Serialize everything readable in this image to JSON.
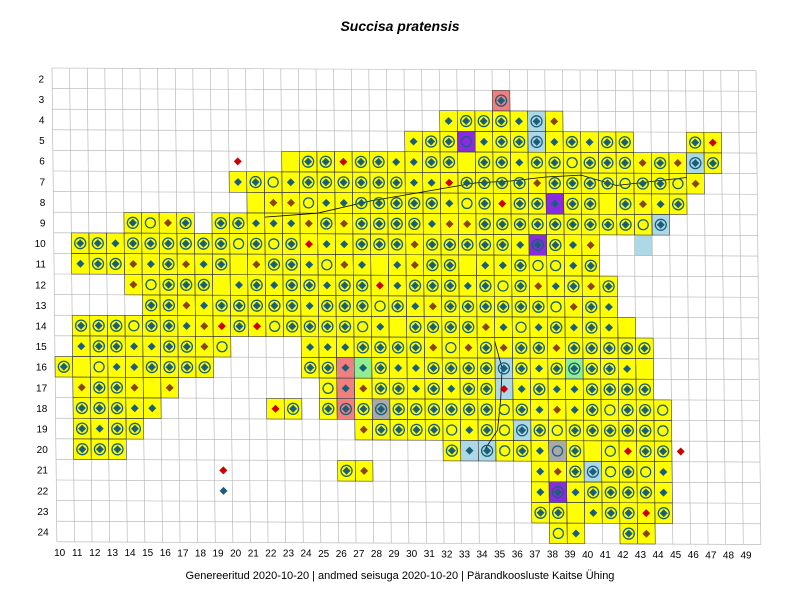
{
  "title": "Succisa pratensis",
  "footer": "Genereeritud 2020-10-20  |  andmed seisuga 2020-10-20  |  Pärandkoosluste Kaitse Ühing",
  "grid": {
    "columns": [
      10,
      11,
      12,
      13,
      14,
      15,
      16,
      17,
      18,
      19,
      20,
      21,
      22,
      23,
      24,
      25,
      26,
      27,
      28,
      29,
      30,
      31,
      32,
      33,
      34,
      35,
      36,
      37,
      38,
      39,
      40,
      41,
      42,
      43,
      44,
      45,
      46,
      47,
      48,
      49
    ],
    "rows": [
      2,
      3,
      4,
      5,
      6,
      7,
      8,
      9,
      10,
      11,
      12,
      13,
      14,
      15,
      16,
      17,
      18,
      19,
      20,
      21,
      22,
      23,
      24
    ]
  },
  "colors": {
    "present": "#ffff00",
    "historic": "#add8e6",
    "pink": "#f08080",
    "purple": "#8a2be2",
    "green": "#90ee90",
    "gray": "#a9a9a9",
    "diamond_teal": "#1a5f7a",
    "diamond_brown": "#8b4513",
    "diamond_red": "#cc0000",
    "circle": "#1a5f7a"
  },
  "legend_symbols": [
    "diamond",
    "circle",
    "circle-diamond",
    "circle-cross"
  ],
  "chart_data": {
    "type": "grid-distribution-map",
    "extent_rows": [
      {
        "row": 3,
        "cells": [
          [
            35,
            35
          ]
        ]
      },
      {
        "row": 4,
        "cells": [
          [
            32,
            35
          ],
          [
            36,
            38
          ]
        ]
      },
      {
        "row": 5,
        "cells": [
          [
            30,
            42
          ],
          [
            46,
            47
          ]
        ]
      },
      {
        "row": 6,
        "cells": [
          [
            23,
            47
          ]
        ]
      },
      {
        "row": 7,
        "cells": [
          [
            20,
            46
          ]
        ]
      },
      {
        "row": 8,
        "cells": [
          [
            21,
            45
          ]
        ]
      },
      {
        "row": 9,
        "cells": [
          [
            14,
            17
          ],
          [
            19,
            44
          ]
        ]
      },
      {
        "row": 10,
        "cells": [
          [
            11,
            40
          ]
        ]
      },
      {
        "row": 11,
        "cells": [
          [
            11,
            40
          ]
        ]
      },
      {
        "row": 12,
        "cells": [
          [
            14,
            41
          ]
        ]
      },
      {
        "row": 13,
        "cells": [
          [
            15,
            41
          ]
        ]
      },
      {
        "row": 14,
        "cells": [
          [
            11,
            42
          ]
        ]
      },
      {
        "row": 15,
        "cells": [
          [
            11,
            19
          ],
          [
            24,
            43
          ]
        ]
      },
      {
        "row": 16,
        "cells": [
          [
            10,
            18
          ],
          [
            24,
            43
          ]
        ]
      },
      {
        "row": 17,
        "cells": [
          [
            11,
            16
          ],
          [
            25,
            43
          ]
        ]
      },
      {
        "row": 18,
        "cells": [
          [
            11,
            15
          ],
          [
            22,
            23
          ],
          [
            25,
            44
          ]
        ]
      },
      {
        "row": 19,
        "cells": [
          [
            11,
            14
          ],
          [
            27,
            44
          ]
        ]
      },
      {
        "row": 20,
        "cells": [
          [
            11,
            13
          ],
          [
            32,
            44
          ]
        ]
      },
      {
        "row": 21,
        "cells": [
          [
            26,
            27
          ],
          [
            37,
            44
          ]
        ]
      },
      {
        "row": 22,
        "cells": [
          [
            37,
            44
          ]
        ]
      },
      {
        "row": 23,
        "cells": [
          [
            37,
            44
          ]
        ]
      },
      {
        "row": 24,
        "cells": [
          [
            38,
            39
          ],
          [
            42,
            43
          ]
        ]
      }
    ],
    "special_cells": [
      {
        "col": 35,
        "row": 3,
        "status": "pink"
      },
      {
        "col": 33,
        "row": 5,
        "status": "purple"
      },
      {
        "col": 38,
        "row": 8,
        "status": "purple"
      },
      {
        "col": 37,
        "row": 10,
        "status": "purple"
      },
      {
        "col": 38,
        "row": 22,
        "status": "purple"
      },
      {
        "col": 26,
        "row": 16,
        "status": "pink"
      },
      {
        "col": 26,
        "row": 17,
        "status": "pink"
      },
      {
        "col": 26,
        "row": 18,
        "status": "pink"
      },
      {
        "col": 27,
        "row": 16,
        "status": "green"
      },
      {
        "col": 39,
        "row": 16,
        "status": "green"
      },
      {
        "col": 28,
        "row": 18,
        "status": "gray"
      },
      {
        "col": 38,
        "row": 20,
        "status": "gray"
      },
      {
        "col": 37,
        "row": 4,
        "status": "historic"
      },
      {
        "col": 37,
        "row": 5,
        "status": "historic"
      },
      {
        "col": 46,
        "row": 6,
        "status": "historic"
      },
      {
        "col": 43,
        "row": 10,
        "status": "historic"
      },
      {
        "col": 44,
        "row": 9,
        "status": "historic"
      },
      {
        "col": 35,
        "row": 16,
        "status": "historic"
      },
      {
        "col": 35,
        "row": 17,
        "status": "historic"
      },
      {
        "col": 34,
        "row": 20,
        "status": "historic"
      },
      {
        "col": 33,
        "row": 20,
        "status": "historic"
      },
      {
        "col": 36,
        "row": 19,
        "status": "historic"
      },
      {
        "col": 40,
        "row": 21,
        "status": "historic"
      }
    ],
    "isolated_markers": [
      {
        "col": 19,
        "row": 21,
        "symbol": "diamond",
        "color": "red"
      },
      {
        "col": 19,
        "row": 22,
        "symbol": "diamond",
        "color": "teal"
      },
      {
        "col": 20,
        "row": 6,
        "symbol": "diamond",
        "color": "red"
      },
      {
        "col": 45,
        "row": 20,
        "symbol": "diamond",
        "color": "red"
      }
    ]
  }
}
